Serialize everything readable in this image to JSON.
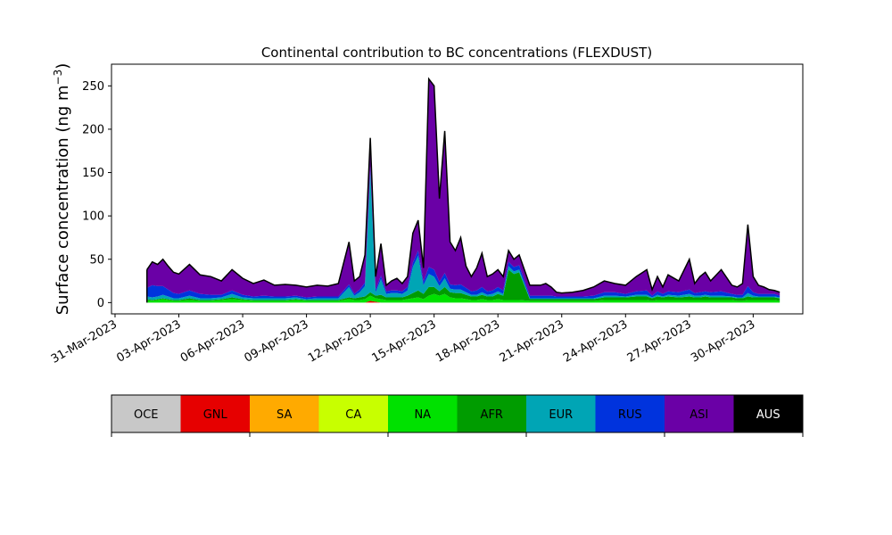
{
  "chart_data": {
    "type": "area",
    "title": "Continental contribution to BC concentrations (FLEXDUST)",
    "ylabel_main": "Surface concentration (ng m",
    "ylabel_sup": "−3",
    "ylabel_close": ")",
    "xlim": [
      "2023-03-30T20:00",
      "2023-05-02T08:00"
    ],
    "ylim": [
      -13,
      275
    ],
    "yticks": [
      0,
      50,
      100,
      150,
      200,
      250
    ],
    "xticks": [
      "31-Mar-2023",
      "03-Apr-2023",
      "06-Apr-2023",
      "09-Apr-2023",
      "12-Apr-2023",
      "15-Apr-2023",
      "18-Apr-2023",
      "21-Apr-2023",
      "24-Apr-2023",
      "27-Apr-2023",
      "30-Apr-2023"
    ],
    "xtick_dates": [
      "2023-03-31",
      "2023-04-03",
      "2023-04-06",
      "2023-04-09",
      "2023-04-12",
      "2023-04-15",
      "2023-04-18",
      "2023-04-21",
      "2023-04-24",
      "2023-04-27",
      "2023-04-30"
    ],
    "x": [
      "2023-04-01T12:00",
      "2023-04-01T18:00",
      "2023-04-02T00:00",
      "2023-04-02T06:00",
      "2023-04-02T12:00",
      "2023-04-02T18:00",
      "2023-04-03T00:00",
      "2023-04-03T12:00",
      "2023-04-04T00:00",
      "2023-04-04T12:00",
      "2023-04-05T00:00",
      "2023-04-05T12:00",
      "2023-04-06T00:00",
      "2023-04-06T12:00",
      "2023-04-07T00:00",
      "2023-04-07T12:00",
      "2023-04-08T00:00",
      "2023-04-08T12:00",
      "2023-04-09T00:00",
      "2023-04-09T12:00",
      "2023-04-10T00:00",
      "2023-04-10T12:00",
      "2023-04-11T00:00",
      "2023-04-11T06:00",
      "2023-04-11T12:00",
      "2023-04-11T18:00",
      "2023-04-12T00:00",
      "2023-04-12T06:00",
      "2023-04-12T12:00",
      "2023-04-12T18:00",
      "2023-04-13T00:00",
      "2023-04-13T06:00",
      "2023-04-13T12:00",
      "2023-04-13T18:00",
      "2023-04-14T00:00",
      "2023-04-14T06:00",
      "2023-04-14T12:00",
      "2023-04-14T18:00",
      "2023-04-15T00:00",
      "2023-04-15T06:00",
      "2023-04-15T12:00",
      "2023-04-15T18:00",
      "2023-04-16T00:00",
      "2023-04-16T06:00",
      "2023-04-16T12:00",
      "2023-04-16T18:00",
      "2023-04-17T00:00",
      "2023-04-17T06:00",
      "2023-04-17T12:00",
      "2023-04-17T18:00",
      "2023-04-18T00:00",
      "2023-04-18T06:00",
      "2023-04-18T12:00",
      "2023-04-18T18:00",
      "2023-04-19T00:00",
      "2023-04-19T12:00",
      "2023-04-20T00:00",
      "2023-04-20T06:00",
      "2023-04-20T12:00",
      "2023-04-20T18:00",
      "2023-04-21T00:00",
      "2023-04-21T12:00",
      "2023-04-22T00:00",
      "2023-04-22T12:00",
      "2023-04-23T00:00",
      "2023-04-23T12:00",
      "2023-04-24T00:00",
      "2023-04-24T12:00",
      "2023-04-25T00:00",
      "2023-04-25T06:00",
      "2023-04-25T12:00",
      "2023-04-25T18:00",
      "2023-04-26T00:00",
      "2023-04-26T12:00",
      "2023-04-27T00:00",
      "2023-04-27T06:00",
      "2023-04-27T12:00",
      "2023-04-27T18:00",
      "2023-04-28T00:00",
      "2023-04-28T12:00",
      "2023-04-29T00:00",
      "2023-04-29T06:00",
      "2023-04-29T12:00",
      "2023-04-29T18:00",
      "2023-04-30T00:00",
      "2023-04-30T06:00",
      "2023-04-30T12:00",
      "2023-04-30T18:00",
      "2023-05-01T00:00",
      "2023-05-01T06:00"
    ],
    "total": [
      38,
      47,
      44,
      50,
      42,
      35,
      33,
      44,
      32,
      30,
      25,
      38,
      28,
      22,
      26,
      20,
      21,
      20,
      18,
      20,
      19,
      22,
      70,
      25,
      30,
      55,
      190,
      30,
      68,
      20,
      25,
      28,
      22,
      30,
      80,
      95,
      40,
      258,
      250,
      120,
      198,
      70,
      60,
      75,
      42,
      30,
      40,
      57,
      30,
      33,
      38,
      30,
      60,
      50,
      55,
      20,
      20,
      22,
      18,
      12,
      11,
      12,
      14,
      18,
      25,
      22,
      20,
      30,
      38,
      15,
      30,
      18,
      32,
      25,
      50,
      22,
      30,
      35,
      25,
      38,
      20,
      18,
      22,
      90,
      30,
      20,
      18,
      15,
      14,
      12
    ],
    "series": [
      {
        "name": "GNL",
        "color": "#e60000",
        "values": [
          0,
          0,
          0,
          0,
          0,
          0,
          0,
          0,
          0,
          0,
          0,
          0,
          0,
          0,
          0,
          0,
          0,
          0,
          0,
          0,
          0,
          0,
          0,
          0,
          0,
          0,
          2,
          1,
          0,
          0,
          0,
          0,
          0,
          0,
          0,
          0,
          0,
          0,
          0,
          0,
          0,
          0,
          0,
          0,
          0,
          0,
          0,
          0,
          0,
          0,
          0,
          0,
          0,
          0,
          0,
          0,
          0,
          0,
          0,
          0,
          0,
          0,
          0,
          0,
          0,
          0,
          0,
          0,
          0,
          0,
          0,
          0,
          0,
          0,
          0,
          0,
          0,
          0,
          0,
          0,
          0,
          0,
          0,
          0,
          0,
          0,
          0,
          0,
          0,
          0
        ]
      },
      {
        "name": "NA",
        "color": "#00e100",
        "values": [
          3,
          2,
          3,
          4,
          3,
          2,
          2,
          3,
          2,
          2,
          3,
          4,
          3,
          2,
          2,
          2,
          2,
          3,
          2,
          2,
          2,
          2,
          4,
          3,
          3,
          4,
          6,
          4,
          4,
          3,
          3,
          3,
          3,
          4,
          5,
          6,
          4,
          8,
          10,
          8,
          10,
          6,
          5,
          5,
          4,
          3,
          3,
          4,
          3,
          3,
          4,
          3,
          3,
          3,
          3,
          2,
          2,
          2,
          2,
          2,
          2,
          2,
          2,
          2,
          3,
          3,
          3,
          3,
          3,
          2,
          3,
          3,
          3,
          3,
          3,
          3,
          3,
          3,
          3,
          3,
          3,
          2,
          2,
          3,
          3,
          3,
          3,
          3,
          3,
          2
        ]
      },
      {
        "name": "AFR",
        "color": "#009c00",
        "values": [
          1,
          1,
          1,
          1,
          1,
          1,
          1,
          2,
          1,
          1,
          1,
          2,
          1,
          1,
          1,
          1,
          1,
          1,
          1,
          1,
          1,
          1,
          2,
          2,
          3,
          3,
          4,
          3,
          5,
          3,
          3,
          3,
          3,
          4,
          6,
          8,
          6,
          10,
          8,
          5,
          8,
          6,
          6,
          6,
          5,
          4,
          4,
          5,
          4,
          4,
          6,
          5,
          35,
          30,
          32,
          2,
          2,
          2,
          2,
          2,
          2,
          2,
          2,
          2,
          3,
          3,
          3,
          4,
          4,
          3,
          4,
          3,
          4,
          3,
          4,
          3,
          3,
          4,
          3,
          3,
          3,
          3,
          3,
          4,
          3,
          3,
          3,
          3,
          3,
          3
        ]
      },
      {
        "name": "EUR",
        "color": "#00a5b5",
        "values": [
          3,
          3,
          3,
          4,
          3,
          2,
          2,
          3,
          2,
          2,
          2,
          4,
          2,
          2,
          2,
          2,
          2,
          2,
          1,
          2,
          2,
          2,
          12,
          3,
          6,
          12,
          140,
          4,
          18,
          4,
          5,
          5,
          4,
          6,
          30,
          40,
          10,
          15,
          12,
          6,
          10,
          4,
          4,
          4,
          3,
          2,
          2,
          3,
          2,
          3,
          3,
          2,
          4,
          3,
          3,
          1,
          1,
          1,
          1,
          1,
          1,
          1,
          1,
          1,
          2,
          2,
          1,
          2,
          2,
          1,
          2,
          1,
          2,
          2,
          3,
          2,
          2,
          2,
          2,
          2,
          1,
          1,
          1,
          4,
          2,
          1,
          1,
          1,
          1,
          1
        ]
      },
      {
        "name": "RUS",
        "color": "#0033dd",
        "values": [
          10,
          14,
          12,
          10,
          8,
          6,
          5,
          6,
          5,
          4,
          3,
          4,
          3,
          2,
          3,
          2,
          2,
          2,
          2,
          2,
          2,
          2,
          3,
          2,
          3,
          4,
          5,
          3,
          4,
          3,
          3,
          3,
          3,
          4,
          5,
          6,
          4,
          8,
          8,
          5,
          6,
          5,
          5,
          6,
          5,
          4,
          5,
          6,
          4,
          4,
          5,
          4,
          5,
          5,
          5,
          3,
          3,
          3,
          3,
          2,
          2,
          2,
          2,
          3,
          4,
          4,
          3,
          4,
          5,
          2,
          4,
          3,
          4,
          4,
          5,
          3,
          4,
          4,
          4,
          5,
          3,
          3,
          3,
          8,
          4,
          3,
          3,
          3,
          3,
          2
        ]
      }
    ],
    "residual_series": {
      "name": "ASI",
      "color": "#6a00a6"
    },
    "legend": {
      "placement": "bottom",
      "entries": [
        {
          "name": "OCE",
          "color": "#c8c8c8",
          "text_color": "#000000"
        },
        {
          "name": "GNL",
          "color": "#e60000",
          "text_color": "#000000"
        },
        {
          "name": "SA",
          "color": "#ffaa00",
          "text_color": "#000000"
        },
        {
          "name": "CA",
          "color": "#c8ff00",
          "text_color": "#000000"
        },
        {
          "name": "NA",
          "color": "#00e100",
          "text_color": "#000000"
        },
        {
          "name": "AFR",
          "color": "#009c00",
          "text_color": "#000000"
        },
        {
          "name": "EUR",
          "color": "#00a5b5",
          "text_color": "#000000"
        },
        {
          "name": "RUS",
          "color": "#0033dd",
          "text_color": "#000000"
        },
        {
          "name": "ASI",
          "color": "#6a00a6",
          "text_color": "#000000"
        },
        {
          "name": "AUS",
          "color": "#000000",
          "text_color": "#ffffff"
        }
      ]
    }
  }
}
